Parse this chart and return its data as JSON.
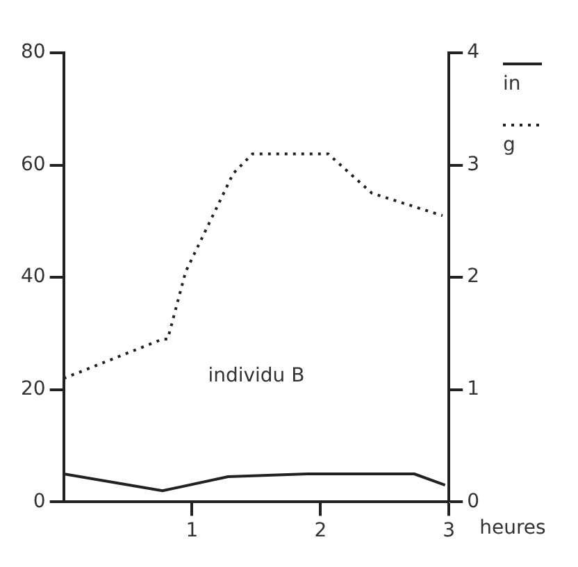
{
  "chart_data": {
    "type": "line",
    "xlabel": "heures",
    "annotations": [
      "individu B"
    ],
    "legend": "top right",
    "grid": false,
    "marker": "none",
    "xlim": [
      0,
      3
    ],
    "xticks": [
      1,
      2,
      3
    ],
    "ylim": [
      0,
      80
    ],
    "yticks": [
      0,
      20,
      40,
      60,
      80
    ],
    "y2lim": [
      0,
      4
    ],
    "y2ticks": [
      0,
      1,
      2,
      3,
      4
    ],
    "series": [
      {
        "name": "in",
        "color": "#222222",
        "line_style": "solid",
        "x": [
          0,
          0.77,
          1.28,
          1.9,
          2.73,
          2.97
        ],
        "values": [
          5,
          2,
          4.5,
          5,
          5,
          3
        ]
      },
      {
        "name": "g",
        "color": "#222222",
        "line_style": "dotted",
        "x": [
          0,
          0.77,
          0.81,
          0.95,
          1.32,
          1.47,
          2.06,
          2.4,
          2.95
        ],
        "values": [
          22,
          29,
          29,
          41,
          58.5,
          62,
          62,
          55,
          51
        ]
      }
    ]
  }
}
